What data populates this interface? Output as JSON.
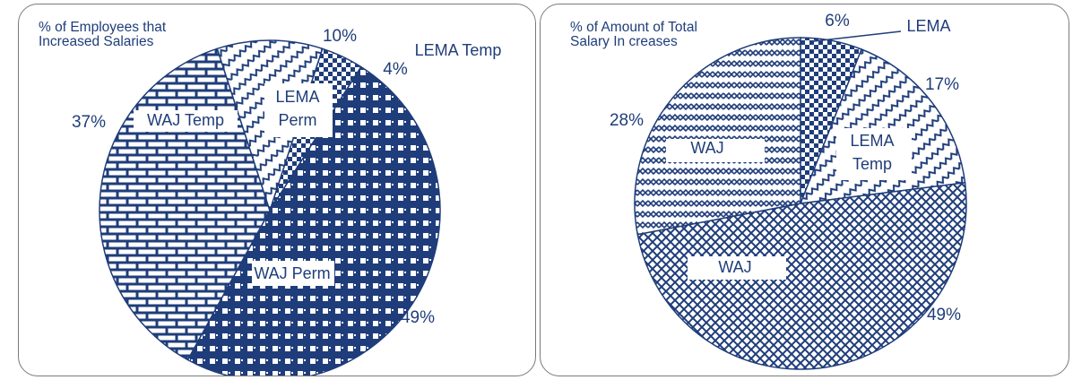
{
  "colors": {
    "navy": "#1f3d7a",
    "white": "#ffffff"
  },
  "chart_data": [
    {
      "type": "pie",
      "title_line1": "% of Employees that",
      "title_line2": "Increased Salaries",
      "slices": [
        {
          "name": "LEMA Temp",
          "label": "LEMA Temp",
          "value": 4,
          "value_label": "4%",
          "pattern": "checker"
        },
        {
          "name": "WAJ Perm",
          "label": "WAJ Perm",
          "value": 49,
          "value_label": "49%",
          "pattern": "grid"
        },
        {
          "name": "WAJ Temp",
          "label": "WAJ Temp",
          "value": 37,
          "value_label": "37%",
          "pattern": "brick"
        },
        {
          "name": "LEMA Perm",
          "label_line1": "LEMA",
          "label_line2": "Perm",
          "value": 10,
          "value_label": "10%",
          "pattern": "zigzag"
        }
      ]
    },
    {
      "type": "pie",
      "title_line1": "% of Amount of Total",
      "title_line2": "Salary In creases",
      "slices": [
        {
          "name": "LEMA",
          "label": "LEMA",
          "value": 6,
          "value_label": "6%",
          "pattern": "checker"
        },
        {
          "name": "LEMA Temp",
          "label_line1": "LEMA",
          "label_line2": "Temp",
          "value": 17,
          "value_label": "17%",
          "pattern": "zigzag"
        },
        {
          "name": "WAJ (Perm)",
          "label": "WAJ",
          "value": 49,
          "value_label": "49%",
          "pattern": "crosshatch"
        },
        {
          "name": "WAJ (Temp)",
          "label": "WAJ",
          "value": 28,
          "value_label": "28%",
          "pattern": "weave"
        }
      ]
    }
  ]
}
